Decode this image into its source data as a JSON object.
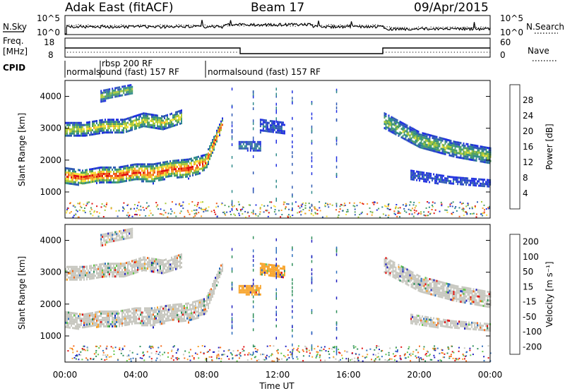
{
  "header": {
    "station": "Adak East (fitACF)",
    "beam": "Beam 17",
    "date": "09/Apr/2015"
  },
  "panels": {
    "nsky": {
      "label": "N.Sky",
      "left_ticks": [
        "10^5",
        "10^0"
      ],
      "right_label": "N.Search",
      "right_ticks": [
        "10^5",
        "10^0"
      ]
    },
    "freq": {
      "label_line1": "Freq.",
      "label_line2": "[MHz]",
      "left_ticks": [
        "18",
        "8"
      ],
      "right_label": "Nave",
      "right_ticks": [
        "60",
        "0"
      ]
    },
    "cpid": {
      "label": "CPID",
      "programs": [
        {
          "name": "normalsound (fast) 157 RF",
          "start": 0.0,
          "end": 2.0
        },
        {
          "name": "rbsp 200 RF",
          "start": 2.0,
          "end": 8.0
        },
        {
          "name": "normalsound (fast) 157 RF",
          "start": 8.0,
          "end": 24.0
        }
      ]
    }
  },
  "chart_data": [
    {
      "type": "heatmap",
      "panel": "power",
      "ylabel": "Slant Range [km]",
      "colorbar_label": "Power [dB]",
      "colorbar_ticks": [
        "4",
        "8",
        "12",
        "16",
        "20",
        "24",
        "28"
      ],
      "colors": [
        "#1f2fe0",
        "#2f5ab4",
        "#2f8a8a",
        "#4fa060",
        "#a7c93a",
        "#f7e13a",
        "#f7a22a",
        "#f25a1a",
        "#e01010"
      ],
      "yticks": [
        "1000",
        "2000",
        "3000",
        "4000"
      ],
      "ylim": [
        180,
        4500
      ],
      "xlim": [
        0,
        24
      ],
      "bands": [
        {
          "x0": 0.0,
          "x1": 8.9,
          "r0": [
            1270,
            1250,
            1330,
            1300,
            1400,
            1300,
            1500,
            1450,
            1700,
            3100
          ],
          "r1": [
            1780,
            1700,
            1800,
            1800,
            1900,
            1900,
            2000,
            2050,
            2200,
            3400
          ],
          "level": 8
        },
        {
          "x0": 0.0,
          "x1": 6.6,
          "r0": [
            2750,
            2800,
            2900,
            2850,
            3050,
            3000,
            3150
          ],
          "r1": [
            3200,
            3200,
            3300,
            3300,
            3500,
            3400,
            3600
          ],
          "level": 5
        },
        {
          "x0": 2.0,
          "x1": 3.8,
          "r0": [
            3850,
            4000,
            4100
          ],
          "r1": [
            4200,
            4300,
            4400
          ],
          "level": 4
        },
        {
          "x0": 9.8,
          "x1": 11.0,
          "r0": [
            2350,
            2300
          ],
          "r1": [
            2600,
            2600
          ],
          "level": 2
        },
        {
          "x0": 11.0,
          "x1": 12.4,
          "r0": [
            2900,
            2850
          ],
          "r1": [
            3300,
            3200
          ],
          "level": 1
        },
        {
          "x0": 18.0,
          "x1": 24.0,
          "r0": [
            3000,
            2400,
            2100,
            1900
          ],
          "r1": [
            3500,
            2900,
            2600,
            2400
          ],
          "level": 4
        },
        {
          "x0": 19.5,
          "x1": 24.0,
          "r0": [
            1400,
            1250,
            1200
          ],
          "r1": [
            1700,
            1500,
            1400
          ],
          "level": 1
        }
      ]
    },
    {
      "type": "heatmap",
      "panel": "velocity",
      "ylabel": "Slant Range [km]",
      "colorbar_label": "Velocity [m s⁻¹]",
      "colorbar_ticks": [
        "200",
        "100",
        "50",
        "15",
        "-15",
        "-50",
        "-100",
        "-200"
      ],
      "colors": [
        "#2020c0",
        "#2e6fbd",
        "#2e8f5a",
        "#63c64a",
        "#c8c8c0",
        "#f7a32a",
        "#f56a1a",
        "#e01010"
      ],
      "yticks": [
        "1000",
        "2000",
        "3000",
        "4000"
      ],
      "ylim": [
        180,
        4500
      ],
      "xlim": [
        0,
        24
      ],
      "xticks": [
        "00:00",
        "04:00",
        "08:00",
        "12:00",
        "16:00",
        "20:00",
        "00:00"
      ],
      "xlabel": "Time UT",
      "bands": [
        {
          "x0": 0.0,
          "x1": 8.9,
          "r0": [
            1270,
            1250,
            1330,
            1300,
            1400,
            1300,
            1500,
            1450,
            1700,
            3100
          ],
          "r1": [
            1780,
            1700,
            1800,
            1800,
            1900,
            1900,
            2000,
            2050,
            2200,
            3400
          ],
          "level": 4
        },
        {
          "x0": 0.0,
          "x1": 6.6,
          "r0": [
            2750,
            2800,
            2900,
            2850,
            3050,
            3000,
            3150
          ],
          "r1": [
            3200,
            3200,
            3300,
            3300,
            3500,
            3400,
            3600
          ],
          "level": 4
        },
        {
          "x0": 2.0,
          "x1": 3.8,
          "r0": [
            3850,
            4000,
            4100
          ],
          "r1": [
            4200,
            4300,
            4400
          ],
          "level": 4
        },
        {
          "x0": 9.8,
          "x1": 11.0,
          "r0": [
            2350,
            2300
          ],
          "r1": [
            2600,
            2600
          ],
          "level": 5
        },
        {
          "x0": 11.0,
          "x1": 12.4,
          "r0": [
            2900,
            2850
          ],
          "r1": [
            3300,
            3200
          ],
          "level": 5
        },
        {
          "x0": 18.0,
          "x1": 24.0,
          "r0": [
            3000,
            2400,
            2100,
            1900
          ],
          "r1": [
            3500,
            2900,
            2600,
            2400
          ],
          "level": 4
        },
        {
          "x0": 19.5,
          "x1": 24.0,
          "r0": [
            1400,
            1250,
            1200
          ],
          "r1": [
            1700,
            1500,
            1400
          ],
          "level": 4
        }
      ]
    }
  ]
}
